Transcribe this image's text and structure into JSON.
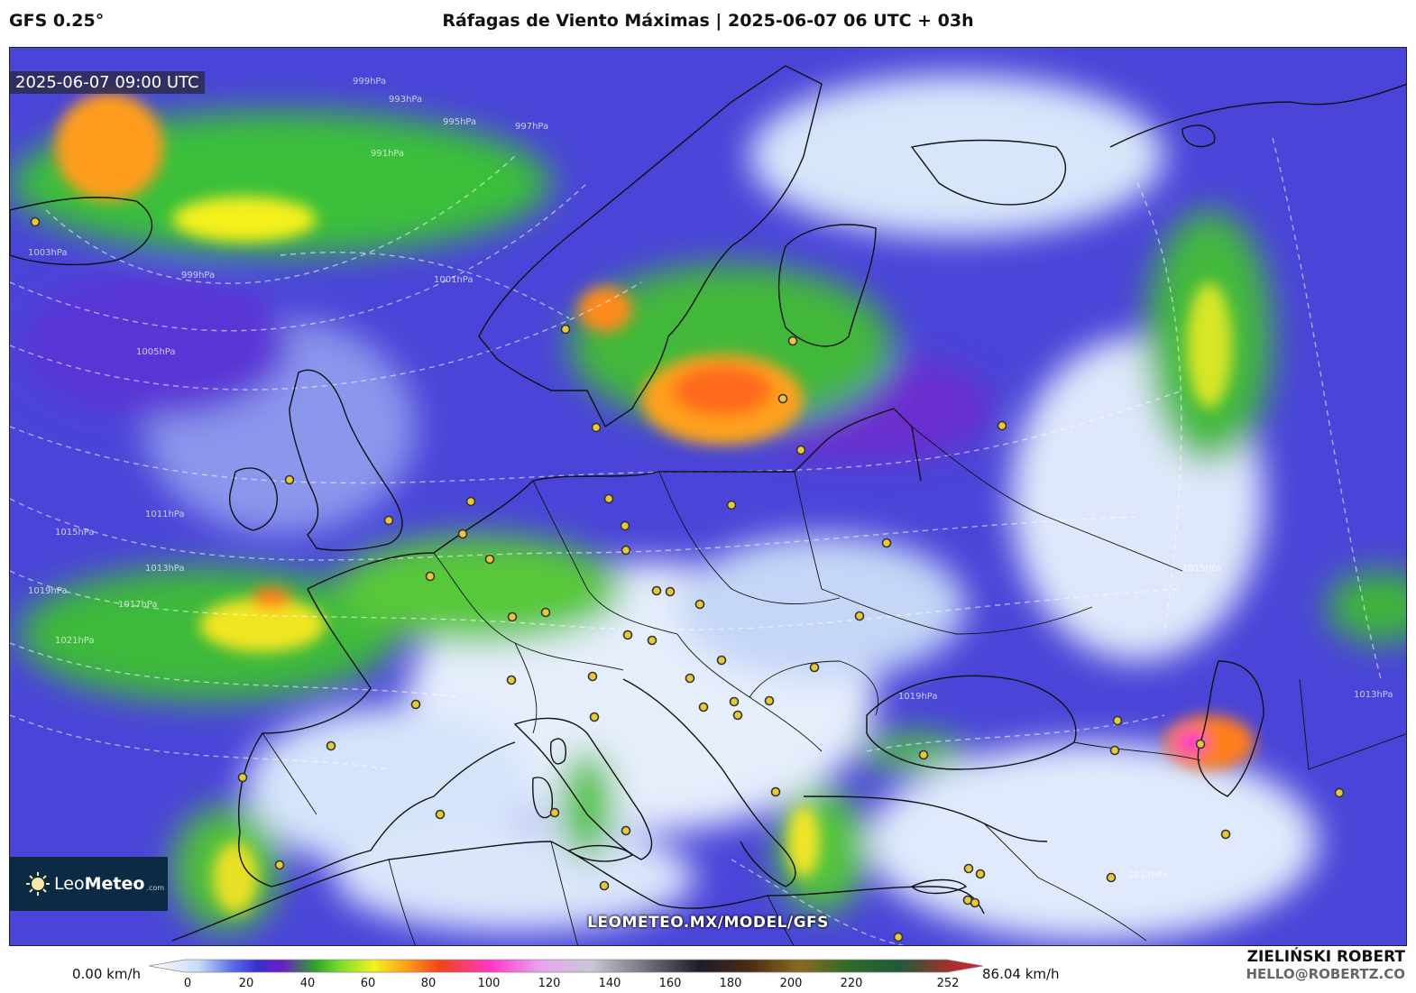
{
  "header": {
    "model": "GFS 0.25°",
    "title": "Ráfagas de Viento Máximas | 2025-06-07 06 UTC + 03h"
  },
  "map": {
    "valid_time": "2025-06-07 09:00 UTC",
    "watermark": "LEOMETEO.MX/MODEL/GFS",
    "logo": {
      "name_light": "Leo",
      "name_bold": "Meteo",
      "suffix": ".com",
      "icon": "sun-icon"
    },
    "isobar_labels": [
      "999hPa",
      "993hPa",
      "995hPa",
      "997hPa",
      "991hPa",
      "999hPa",
      "1003hPa",
      "1005hPa",
      "1001hPa",
      "1011hPa",
      "1013hPa",
      "1015hPa",
      "1017hPa",
      "1019hPa",
      "1021hPa",
      "1013hPa",
      "1019hPa",
      "1015hPa",
      "1013hPa"
    ]
  },
  "colorbar": {
    "min_label": "0.00 km/h",
    "max_label": "86.04 km/h",
    "ticks": [
      "0",
      "20",
      "40",
      "60",
      "80",
      "100",
      "120",
      "140",
      "160",
      "180",
      "200",
      "220",
      "252"
    ],
    "colors": [
      "#ffffff",
      "#c9dbf7",
      "#5a6ee8",
      "#3a2fd0",
      "#6a1fc4",
      "#2fa52a",
      "#7fdc2b",
      "#f3f21d",
      "#ff9a1a",
      "#f0421c",
      "#ff38c8",
      "#e9a3f0",
      "#c9c9d6",
      "#6d6d78",
      "#1c1c2a",
      "#4a2c14",
      "#8b6a1e",
      "#2e6a2a",
      "#1f5a3a",
      "#a3322c",
      "#d81b36"
    ]
  },
  "credits": {
    "author": "ZIELIŃSKI ROBERT",
    "email": "HELLO@ROBERTZ.CO"
  }
}
